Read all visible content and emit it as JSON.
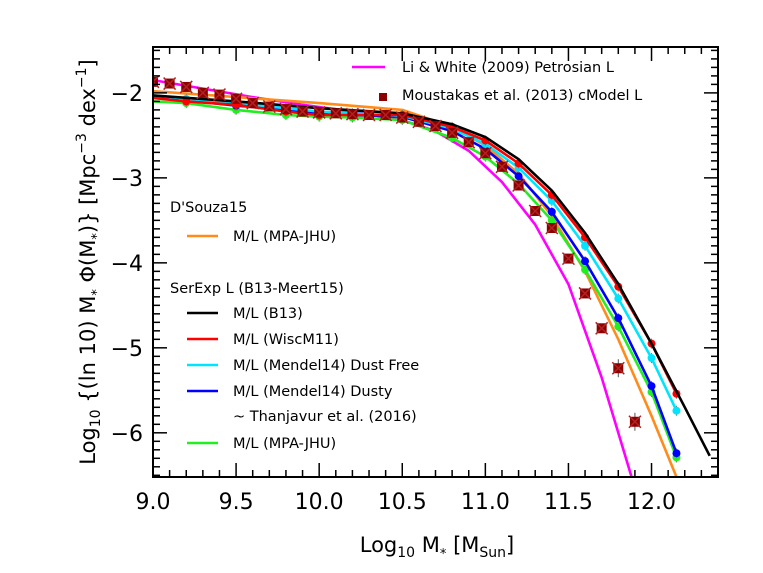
{
  "chart_data": {
    "type": "line",
    "title": "",
    "xlabel": "Log10 M* [MSun]",
    "ylabel": "Log10 {(ln 10) M* Φ(M*)} [Mpc^-3 dex^-1]",
    "xlim": [
      9.0,
      12.4
    ],
    "ylim": [
      -6.52,
      -1.46
    ],
    "x_ticks": [
      "9.0",
      "9.5",
      "10.0",
      "10.5",
      "11.0",
      "11.5",
      "12.0"
    ],
    "y_ticks": [
      "-2",
      "-3",
      "-4",
      "-5",
      "-6"
    ],
    "grid": false,
    "legend_position": "top-right and left-inside",
    "series": [
      {
        "name": "Li & White (2009) Petrosian L",
        "group": "top",
        "color": "#ff00ff",
        "style": "line",
        "x": [
          9.0,
          9.3,
          9.6,
          9.9,
          10.2,
          10.5,
          10.7,
          10.9,
          11.1,
          11.3,
          11.5,
          11.7,
          11.88
        ],
        "y": [
          -1.85,
          -1.95,
          -2.05,
          -2.14,
          -2.22,
          -2.32,
          -2.45,
          -2.68,
          -3.05,
          -3.55,
          -4.25,
          -5.35,
          -6.52
        ]
      },
      {
        "name": "Moustakas et al. (2013) cModel L",
        "group": "top",
        "color": "#8b0000",
        "style": "markers",
        "x": [
          9.0,
          9.1,
          9.2,
          9.3,
          9.4,
          9.5,
          9.6,
          9.7,
          9.8,
          9.9,
          10.0,
          10.1,
          10.2,
          10.3,
          10.4,
          10.5,
          10.6,
          10.7,
          10.8,
          10.9,
          11.0,
          11.1,
          11.2,
          11.3,
          11.4,
          11.5,
          11.6,
          11.7,
          11.8,
          11.9,
          12.0,
          12.1
        ],
        "y": [
          -1.87,
          -1.89,
          -1.93,
          -2.0,
          -2.02,
          -2.07,
          -2.12,
          -2.16,
          -2.19,
          -2.22,
          -2.23,
          -2.24,
          -2.25,
          -2.26,
          -2.26,
          -2.29,
          -2.34,
          -2.39,
          -2.47,
          -2.58,
          -2.71,
          -2.87,
          -3.09,
          -3.39,
          -3.59,
          -3.95,
          -4.36,
          -4.77,
          -5.24,
          -5.87,
          null,
          null
        ]
      },
      {
        "name": "M/L (MPA-JHU)",
        "group": "D'Souza15",
        "color": "#ff8c1a",
        "style": "line",
        "x": [
          9.0,
          9.5,
          10.0,
          10.5,
          10.8,
          11.0,
          11.2,
          11.4,
          11.6,
          11.8,
          12.0,
          12.15
        ],
        "y": [
          -1.98,
          -2.05,
          -2.12,
          -2.2,
          -2.4,
          -2.62,
          -2.95,
          -3.45,
          -4.1,
          -4.9,
          -5.8,
          -6.52
        ]
      },
      {
        "name": "M/L (B13)",
        "group": "SerExp L (B13-Meert15)",
        "color": "#000000",
        "style": "line",
        "x": [
          9.0,
          9.5,
          10.0,
          10.5,
          10.8,
          11.0,
          11.2,
          11.4,
          11.6,
          11.8,
          12.0,
          12.2,
          12.35
        ],
        "y": [
          -2.03,
          -2.1,
          -2.18,
          -2.24,
          -2.37,
          -2.52,
          -2.78,
          -3.15,
          -3.65,
          -4.25,
          -4.95,
          -5.7,
          -6.27
        ]
      },
      {
        "name": "M/L (WiscM11)",
        "group": "SerExp L (B13-Meert15)",
        "color": "#ff0000",
        "style": "line+markers",
        "x": [
          9.0,
          9.2,
          9.5,
          9.8,
          10.0,
          10.2,
          10.5,
          10.8,
          11.0,
          11.2,
          11.4,
          11.6,
          11.8,
          12.0,
          12.15
        ],
        "y": [
          -2.06,
          -2.1,
          -2.14,
          -2.22,
          -2.26,
          -2.26,
          -2.26,
          -2.4,
          -2.56,
          -2.83,
          -3.2,
          -3.7,
          -4.28,
          -4.95,
          -5.54
        ]
      },
      {
        "name": "M/L (Mendel14) Dust Free",
        "group": "SerExp L (B13-Meert15)",
        "color": "#00e5ff",
        "style": "line+markers",
        "x": [
          9.0,
          9.2,
          9.5,
          9.8,
          10.0,
          10.2,
          10.5,
          10.8,
          11.0,
          11.2,
          11.4,
          11.6,
          11.8,
          12.0,
          12.15
        ],
        "y": [
          -2.03,
          -2.07,
          -2.12,
          -2.18,
          -2.22,
          -2.24,
          -2.27,
          -2.42,
          -2.6,
          -2.88,
          -3.27,
          -3.8,
          -4.42,
          -5.12,
          -5.74
        ]
      },
      {
        "name": "M/L (Mendel14) Dusty",
        "group": "SerExp L (B13-Meert15)",
        "color": "#0000ff",
        "style": "line+markers",
        "x": [
          9.0,
          9.2,
          9.5,
          9.8,
          10.0,
          10.2,
          10.5,
          10.8,
          11.0,
          11.2,
          11.4,
          11.6,
          11.8,
          12.0,
          12.15
        ],
        "y": [
          -2.05,
          -2.09,
          -2.15,
          -2.2,
          -2.25,
          -2.26,
          -2.28,
          -2.45,
          -2.66,
          -2.98,
          -3.4,
          -3.98,
          -4.65,
          -5.45,
          -6.24
        ]
      },
      {
        "name": "M/L (MPA-JHU)",
        "group": "SerExp L (B13-Meert15)",
        "note": "~ Thanjavur et al. (2016)",
        "color": "#22ee22",
        "style": "line+markers",
        "x": [
          9.0,
          9.2,
          9.5,
          9.8,
          10.0,
          10.2,
          10.5,
          10.8,
          11.0,
          11.2,
          11.4,
          11.6,
          11.8,
          12.0,
          12.15
        ],
        "y": [
          -2.1,
          -2.12,
          -2.2,
          -2.26,
          -2.28,
          -2.29,
          -2.32,
          -2.53,
          -2.75,
          -3.07,
          -3.5,
          -4.08,
          -4.75,
          -5.52,
          -6.29
        ]
      }
    ]
  },
  "axes": {
    "x_title_main": "Log",
    "x_title_sub": "10",
    "x_title_rest": " M",
    "x_title_star": "*",
    "x_title_bracket_open": " [M",
    "x_title_bracket_sub": "Sun",
    "x_title_bracket_close": "]",
    "y_title_a": "Log",
    "y_title_sub": "10",
    "y_title_b": " {(ln 10) M",
    "y_title_star1": "*",
    "y_title_c": " Φ(M",
    "y_title_star2": "*",
    "y_title_d": ")} [Mpc",
    "y_title_sup1": "−3",
    "y_title_e": " dex",
    "y_title_sup2": "−1",
    "y_title_f": "]",
    "x_tick_labels": [
      "9.0",
      "9.5",
      "10.0",
      "10.5",
      "11.0",
      "11.5",
      "12.0"
    ],
    "y_tick_labels": [
      "−2",
      "−3",
      "−4",
      "−5",
      "−6"
    ]
  },
  "legend": {
    "top": [
      {
        "label": "Li & White (2009) Petrosian L",
        "color": "#ff00ff",
        "kind": "line"
      },
      {
        "label": "Moustakas et al. (2013) cModel L",
        "color": "#8b0000",
        "kind": "marker"
      }
    ],
    "group1_title": "D'Souza15",
    "group1": [
      {
        "label": "M/L (MPA-JHU)",
        "color": "#ff8c1a"
      }
    ],
    "group2_title": "SerExp L (B13-Meert15)",
    "group2": [
      {
        "label": "M/L (B13)",
        "color": "#000000"
      },
      {
        "label": "M/L (WiscM11)",
        "color": "#ff0000"
      },
      {
        "label": "M/L (Mendel14) Dust Free",
        "color": "#00e5ff"
      },
      {
        "label": "M/L (Mendel14) Dusty",
        "color": "#0000ff"
      },
      {
        "label": "~ Thanjavur et al. (2016)",
        "color": null
      },
      {
        "label": "M/L (MPA-JHU)",
        "color": "#22ee22"
      }
    ]
  }
}
